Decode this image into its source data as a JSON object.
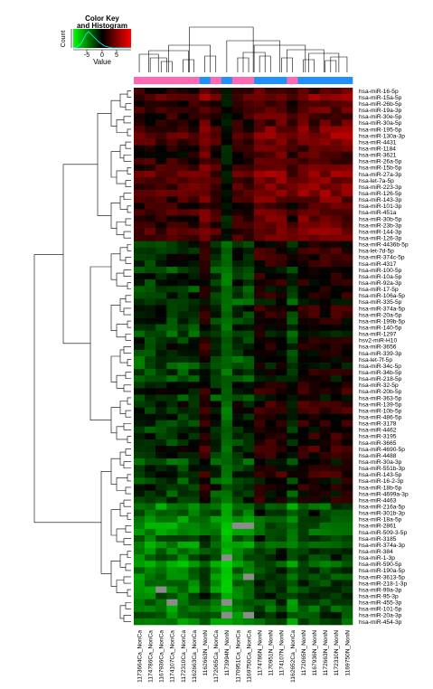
{
  "chart_data": {
    "type": "heatmap",
    "color_key": {
      "title": "Color Key and Histogram",
      "ylabel": "Count",
      "xlabel": "Value",
      "ticks": [
        "-5",
        "0",
        "5"
      ],
      "colormap": [
        "#00ff00",
        "#000000",
        "#ff0000"
      ]
    },
    "columns": [
      {
        "label": "1173664Ca_NonCa",
        "group": "NonCa"
      },
      {
        "label": "1174786Ca_NonCa",
        "group": "NonCa"
      },
      {
        "label": "1167936Ca_NonCa",
        "group": "NonCa"
      },
      {
        "label": "1174107Ca_NonCa",
        "group": "NonCa"
      },
      {
        "label": "1172310Ca_NonCa",
        "group": "NonCa"
      },
      {
        "label": "1162663Ca_NonCa",
        "group": "NonCa"
      },
      {
        "label": "1162663N_NonN",
        "group": "NonN"
      },
      {
        "label": "1172065Ca_NonCa",
        "group": "NonCa"
      },
      {
        "label": "1173994N_NonN",
        "group": "NonN"
      },
      {
        "label": "1170951Ca_NonCa",
        "group": "NonCa"
      },
      {
        "label": "1169750Ca_NonCa",
        "group": "NonCa"
      },
      {
        "label": "1174786N_NonN",
        "group": "NonN"
      },
      {
        "label": "1170951N_NonN",
        "group": "NonN"
      },
      {
        "label": "1174107N_NonN",
        "group": "NonN"
      },
      {
        "label": "1162652Ca_NonCa",
        "group": "NonCa"
      },
      {
        "label": "1172065N_NonN",
        "group": "NonN"
      },
      {
        "label": "1167936N_NonN",
        "group": "NonN"
      },
      {
        "label": "1172663N_NonN",
        "group": "NonN"
      },
      {
        "label": "1172310N_NonN",
        "group": "NonN"
      },
      {
        "label": "1169750N_NonN",
        "group": "NonN"
      }
    ],
    "group_colors": {
      "NonCa": "#ff69b4",
      "NonN": "#1e90ff"
    },
    "rows": [
      "hsa-miR-16-5p",
      "hsa-miR-15a-5p",
      "hsa-miR-26b-5p",
      "hsa-miR-19a-3p",
      "hsa-miR-30e-5p",
      "hsa-miR-30a-5p",
      "hsa-miR-195-5p",
      "hsa-miR-130a-3p",
      "hsa-miR-4431",
      "hsa-miR-1184",
      "hsa-miR-3621",
      "hsa-miR-26a-5p",
      "hsa-miR-15b-5p",
      "hsa-miR-27a-3p",
      "hsa-let-7a-5p",
      "hsa-miR-223-3p",
      "hsa-miR-126-5p",
      "hsa-miR-143-3p",
      "hsa-miR-101-3p",
      "hsa-miR-451a",
      "hsa-miR-30b-5p",
      "hsa-miR-23b-3p",
      "hsa-miR-144-3p",
      "hsa-miR-126-3p",
      "hsa-miR-4436b-5p",
      "hsa-let-7d-5p",
      "hsa-miR-374c-5p",
      "hsa-miR-4317",
      "hsa-miR-100-5p",
      "hsa-miR-10a-5p",
      "hsa-miR-92a-3p",
      "hsa-miR-17-5p",
      "hsa-miR-106a-5p",
      "hsa-miR-335-5p",
      "hsa-miR-374a-5p",
      "hsa-miR-20a-5p",
      "hsa-miR-199b-5p",
      "hsa-miR-140-5p",
      "hsa-miR-1297",
      "hsv2-miR-H10",
      "hsa-miR-3656",
      "hsa-miR-339-3p",
      "hsa-let-7f-5p",
      "hsa-miR-34c-5p",
      "hsa-miR-34b-5p",
      "hsa-miR-218-5p",
      "hsa-miR-32-5p",
      "hsa-miR-20b-5p",
      "hsa-miR-363-5p",
      "hsa-miR-139-5p",
      "hsa-miR-10b-5p",
      "hsa-miR-486-5p",
      "hsa-miR-3178",
      "hsa-miR-4462",
      "hsa-miR-3195",
      "hsa-miR-3665",
      "hsa-miR-4690-5p",
      "hsa-miR-4488",
      "hsa-miR-30a-3p",
      "hsa-miR-551b-3p",
      "hsa-miR-143-5p",
      "hsa-miR-16-2-3p",
      "hsa-miR-18b-5p",
      "hsa-miR-4699a-3p",
      "hsa-miR-4463",
      "hsa-miR-216a-5p",
      "hsa-miR-301b-3p",
      "hsa-miR-18a-5p",
      "hsa-miR-2861",
      "hsa-miR-509-3-5p",
      "hsa-miR-3185",
      "hsa-miR-374a-3p",
      "hsa-miR-384",
      "hsa-miR-1-3p",
      "hsa-miR-590-5p",
      "hsa-miR-190a-5p",
      "hsa-miR-3613-5p",
      "hsa-miR-218-1-3p",
      "hsa-miR-99a-3p",
      "hsa-miR-95-3p",
      "hsa-miR-455-3p",
      "hsa-miR-101-5p",
      "hsa-miR-20a-3p",
      "hsa-miR-454-3p"
    ],
    "row_cluster_profiles": {
      "upper_block": {
        "row_range": [
          0,
          23
        ],
        "NonCa_mean": 1.4,
        "NonN_mean": 2.6,
        "col_8_value": -0.6
      },
      "middle_block": {
        "row_range": [
          24,
          64
        ],
        "NonCa_mean": -1.2,
        "NonN_mean": 0.6,
        "col_8_value": -2.5
      },
      "lower_block": {
        "row_range": [
          65,
          83
        ],
        "NonCa_mean": -3.0,
        "NonN_mean": -1.6,
        "col_8_value": -4.5
      }
    },
    "missing_cells": [
      [
        68,
        9
      ],
      [
        68,
        10
      ],
      [
        73,
        8
      ],
      [
        76,
        10
      ],
      [
        78,
        2
      ],
      [
        80,
        3
      ],
      [
        80,
        8
      ],
      [
        82,
        10
      ],
      [
        82,
        8
      ]
    ]
  }
}
